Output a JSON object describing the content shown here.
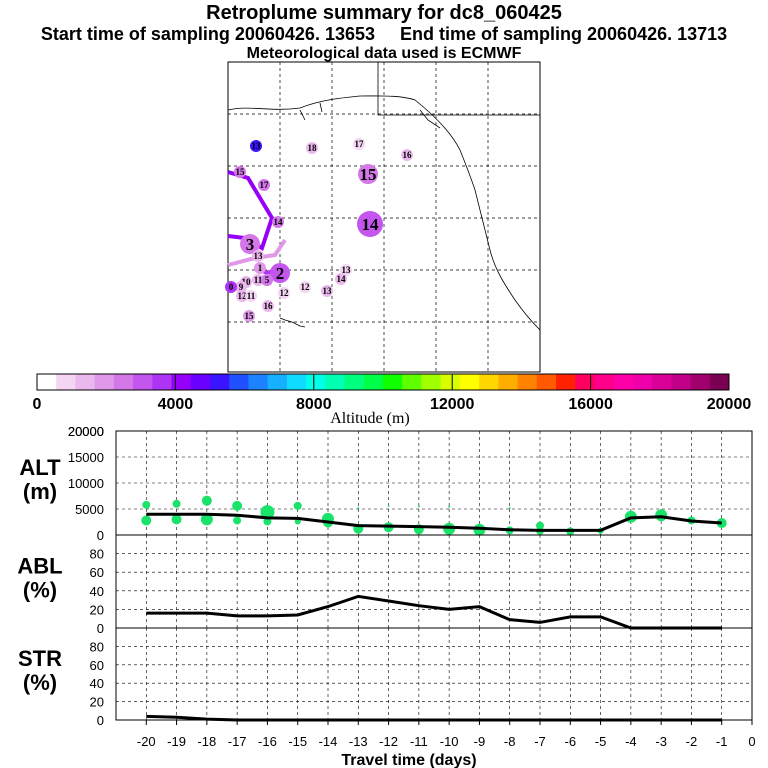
{
  "header": {
    "title": "Retroplume summary for dc8_060425",
    "start_label": "Start time of sampling 20060426. 13653",
    "end_label": "End time of sampling 20060426. 13713",
    "met_label": "Meteorological data used is ECMWF"
  },
  "map": {
    "markers": [
      {
        "label": "13",
        "alt": 5000,
        "size": "s"
      },
      {
        "label": "18",
        "alt": 1200,
        "size": "s"
      },
      {
        "label": "17",
        "alt": 1000,
        "size": "s"
      },
      {
        "label": "16",
        "alt": 1500,
        "size": "s"
      },
      {
        "label": "17",
        "alt": 2500,
        "size": "s"
      },
      {
        "label": "15",
        "alt": 2300,
        "size": "m"
      },
      {
        "label": "14",
        "alt": 2800,
        "size": "l"
      },
      {
        "label": "15",
        "alt": 2500,
        "size": "s"
      },
      {
        "label": "14",
        "alt": 2500,
        "size": "s"
      },
      {
        "label": "3",
        "alt": 2700,
        "size": "m"
      },
      {
        "label": "13",
        "alt": 1500,
        "size": "s"
      },
      {
        "label": "1",
        "alt": 2000,
        "size": "s"
      },
      {
        "label": "2",
        "alt": 2800,
        "size": "m"
      },
      {
        "label": "13",
        "alt": 800,
        "size": "s"
      },
      {
        "label": "14",
        "alt": 1300,
        "size": "s"
      },
      {
        "label": "12",
        "alt": 800,
        "size": "s"
      },
      {
        "label": "13",
        "alt": 1200,
        "size": "s"
      },
      {
        "label": "12",
        "alt": 1000,
        "size": "s"
      },
      {
        "label": "16",
        "alt": 1200,
        "size": "s"
      },
      {
        "label": "15",
        "alt": 1800,
        "size": "s"
      },
      {
        "label": "10",
        "alt": 1500,
        "size": "s"
      },
      {
        "label": "11",
        "alt": 1500,
        "size": "s"
      },
      {
        "label": "9",
        "alt": 1500,
        "size": "s"
      },
      {
        "label": "12",
        "alt": 1500,
        "size": "s"
      },
      {
        "label": "11",
        "alt": 1000,
        "size": "s"
      },
      {
        "label": "0",
        "alt": 3500,
        "size": "s"
      },
      {
        "label": "5",
        "alt": 2500,
        "size": "s"
      }
    ]
  },
  "colorbar": {
    "title": "Altitude (m)",
    "min": 0,
    "max": 20000,
    "ticks": [
      "0",
      "4000",
      "8000",
      "12000",
      "16000",
      "20000"
    ],
    "colors": [
      "#ffffff",
      "#f4d6f4",
      "#ebb8ee",
      "#df99e8",
      "#d477e8",
      "#c455ee",
      "#ad33f5",
      "#9600f8",
      "#6a00ff",
      "#3a14ff",
      "#2050ff",
      "#1d82ff",
      "#16b0ff",
      "#10dcff",
      "#00ffe6",
      "#00ffb2",
      "#00ff7e",
      "#00ff48",
      "#10ff00",
      "#60ff00",
      "#a0ff00",
      "#d8ff00",
      "#ffff00",
      "#ffd700",
      "#ffae00",
      "#ff8200",
      "#ff5a00",
      "#ff2200",
      "#ff0060",
      "#ff008a",
      "#ff00a8",
      "#f000aa",
      "#d80096",
      "#c00088",
      "#a0006c",
      "#7a0054"
    ]
  },
  "chart_data": [
    {
      "type": "scatter+line",
      "panel_label": "ALT",
      "panel_unit": "(m)",
      "ylim": [
        0,
        20000
      ],
      "yticks": [
        "0",
        "5000",
        "10000",
        "15000",
        "20000"
      ],
      "x": [
        -20,
        -19,
        -18,
        -17,
        -16,
        -15,
        -14,
        -13,
        -12,
        -11,
        -10,
        -9,
        -8,
        -7,
        -6,
        -5,
        -4,
        -3,
        -2,
        -1
      ],
      "mean_line": [
        4000,
        4000,
        4000,
        3800,
        3300,
        3200,
        2500,
        1800,
        1700,
        1600,
        1500,
        1300,
        1000,
        900,
        900,
        900,
        3300,
        3500,
        2700,
        2300
      ],
      "points": [
        {
          "x": -20,
          "y": 5800,
          "r": 4
        },
        {
          "x": -20,
          "y": 2800,
          "r": 5
        },
        {
          "x": -19,
          "y": 6000,
          "r": 4
        },
        {
          "x": -19,
          "y": 3000,
          "r": 5
        },
        {
          "x": -18,
          "y": 6600,
          "r": 5
        },
        {
          "x": -18,
          "y": 3000,
          "r": 6
        },
        {
          "x": -17,
          "y": 5600,
          "r": 5
        },
        {
          "x": -17,
          "y": 2800,
          "r": 4
        },
        {
          "x": -16,
          "y": 4400,
          "r": 7
        },
        {
          "x": -16,
          "y": 2600,
          "r": 4
        },
        {
          "x": -15,
          "y": 5600,
          "r": 4
        },
        {
          "x": -15,
          "y": 2600,
          "r": 3
        },
        {
          "x": -14,
          "y": 3100,
          "r": 6
        },
        {
          "x": -14,
          "y": 2400,
          "r": 5
        },
        {
          "x": -13,
          "y": 1200,
          "r": 5
        },
        {
          "x": -12,
          "y": 1500,
          "r": 5
        },
        {
          "x": -11,
          "y": 1100,
          "r": 5
        },
        {
          "x": -10,
          "y": 1200,
          "r": 6
        },
        {
          "x": -9,
          "y": 1000,
          "r": 6
        },
        {
          "x": -8,
          "y": 900,
          "r": 4
        },
        {
          "x": -7,
          "y": 1800,
          "r": 4
        },
        {
          "x": -7,
          "y": 800,
          "r": 4
        },
        {
          "x": -6,
          "y": 700,
          "r": 4
        },
        {
          "x": -5,
          "y": 800,
          "r": 3
        },
        {
          "x": -4,
          "y": 3500,
          "r": 6
        },
        {
          "x": -3,
          "y": 3800,
          "r": 6
        },
        {
          "x": -2,
          "y": 2800,
          "r": 4
        },
        {
          "x": -1,
          "y": 2300,
          "r": 5
        },
        {
          "x": -13,
          "y": 5200,
          "r": 1
        },
        {
          "x": -12,
          "y": 5600,
          "r": 1
        },
        {
          "x": -11,
          "y": 5500,
          "r": 1
        },
        {
          "x": -10,
          "y": 5400,
          "r": 1
        },
        {
          "x": -8,
          "y": 5200,
          "r": 1
        }
      ]
    },
    {
      "type": "line",
      "panel_label": "ABL",
      "panel_unit": "(%)",
      "ylim": [
        0,
        100
      ],
      "yticks": [
        "0",
        "20",
        "40",
        "60",
        "80"
      ],
      "x": [
        -20,
        -19,
        -18,
        -17,
        -16,
        -15,
        -14,
        -13,
        -12,
        -11,
        -10,
        -9,
        -8,
        -7,
        -6,
        -5,
        -4,
        -3,
        -2,
        -1
      ],
      "values": [
        16,
        16,
        16,
        13,
        13,
        14,
        23,
        34,
        29,
        24,
        20,
        23,
        9,
        6,
        12,
        12,
        0,
        0,
        0,
        0
      ]
    },
    {
      "type": "line",
      "panel_label": "STR",
      "panel_unit": "(%)",
      "ylim": [
        0,
        100
      ],
      "yticks": [
        "0",
        "20",
        "40",
        "60",
        "80"
      ],
      "x": [
        -20,
        -19,
        -18,
        -17,
        -16,
        -15,
        -14,
        -13,
        -12,
        -11,
        -10,
        -9,
        -8,
        -7,
        -6,
        -5,
        -4,
        -3,
        -2,
        -1
      ],
      "values": [
        4,
        3,
        1,
        0,
        0,
        0,
        0,
        0,
        0,
        0,
        0,
        0,
        0,
        0,
        0,
        0,
        0,
        0,
        0,
        0
      ]
    }
  ],
  "xaxis": {
    "label": "Travel time (days)",
    "ticks": [
      "-20",
      "-19",
      "-18",
      "-17",
      "-16",
      "-15",
      "-14",
      "-13",
      "-12",
      "-11",
      "-10",
      "-9",
      "-8",
      "-7",
      "-6",
      "-5",
      "-4",
      "-3",
      "-2",
      "-1",
      "0"
    ]
  }
}
